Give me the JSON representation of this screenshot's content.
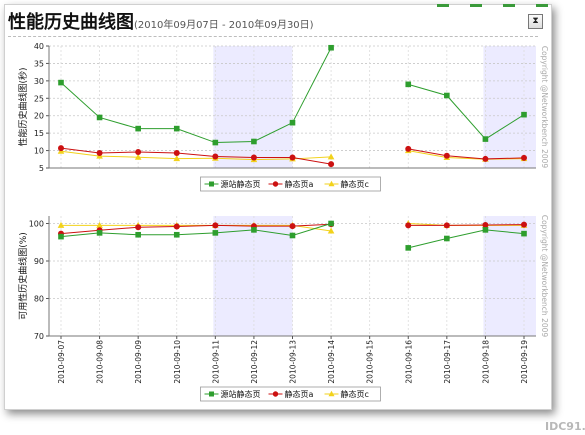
{
  "page": {
    "title": "性能历史曲线图",
    "subtitle": "(2010年09月07日 - 2010年09月30日)",
    "watermark": "IDC91."
  },
  "icons": {
    "export": "export-icon"
  },
  "chart_data": [
    {
      "type": "line",
      "ylabel": "性能历史曲线图(秒)",
      "ylim": [
        5,
        40
      ],
      "yticks": [
        5,
        10,
        15,
        20,
        25,
        30,
        35,
        40
      ],
      "grid": true,
      "legend_position": "bottom",
      "copyright": "Copyright @Networkbench 2009",
      "categories": [
        "2010-09-07",
        "2010-09-08",
        "2010-09-09",
        "2010-09-10",
        "2010-09-11",
        "2010-09-12",
        "2010-09-13",
        "2010-09-14",
        "2010-09-15",
        "2010-09-16",
        "2010-09-17",
        "2010-09-18",
        "2010-09-19"
      ],
      "shaded_ranges": [
        [
          "2010-09-11",
          "2010-09-13"
        ],
        [
          "2010-09-18",
          "2010-09-19"
        ]
      ],
      "series": [
        {
          "name": "源站静态页",
          "color": "#2e9e2e",
          "marker": "square",
          "values": [
            29.5,
            19.5,
            16.3,
            16.3,
            12.3,
            12.6,
            18,
            39.5,
            null,
            29,
            25.8,
            13.3,
            20.3
          ]
        },
        {
          "name": "静态页a",
          "color": "#cc1111",
          "marker": "circle",
          "values": [
            10.7,
            9.3,
            9.6,
            9.3,
            8.3,
            8,
            8,
            6.1,
            null,
            10.5,
            8.5,
            7.6,
            7.9
          ]
        },
        {
          "name": "静态页c",
          "color": "#f2d21b",
          "marker": "triangle",
          "values": [
            9.8,
            8.4,
            8.1,
            7.7,
            7.8,
            7.4,
            7.6,
            8.2,
            null,
            10,
            8,
            7.5,
            7.7
          ]
        }
      ]
    },
    {
      "type": "line",
      "ylabel": "可用性历史曲线图(%)",
      "ylim": [
        70,
        102
      ],
      "yticks": [
        70,
        80,
        90,
        100
      ],
      "grid": true,
      "legend_position": "bottom",
      "copyright": "Copyright @Networkbench 2009",
      "categories": [
        "2010-09-07",
        "2010-09-08",
        "2010-09-09",
        "2010-09-10",
        "2010-09-11",
        "2010-09-12",
        "2010-09-13",
        "2010-09-14",
        "2010-09-15",
        "2010-09-16",
        "2010-09-17",
        "2010-09-18",
        "2010-09-19"
      ],
      "shaded_ranges": [
        [
          "2010-09-11",
          "2010-09-13"
        ],
        [
          "2010-09-18",
          "2010-09-19"
        ]
      ],
      "series": [
        {
          "name": "源站静态页",
          "color": "#2e9e2e",
          "marker": "square",
          "values": [
            96.5,
            97.5,
            97,
            97,
            97.5,
            98.3,
            96.8,
            100,
            null,
            93.5,
            96,
            98.3,
            97.3
          ]
        },
        {
          "name": "静态页a",
          "color": "#cc1111",
          "marker": "circle",
          "values": [
            97.3,
            98.2,
            99,
            99.2,
            99.5,
            99.3,
            99.3,
            99.8,
            null,
            99.5,
            99.5,
            99.6,
            99.7
          ]
        },
        {
          "name": "静态页c",
          "color": "#f2d21b",
          "marker": "triangle",
          "values": [
            99.5,
            99.5,
            99.5,
            99.5,
            99.5,
            99.5,
            99.5,
            98,
            null,
            100,
            99.5,
            99.5,
            99.5
          ]
        }
      ]
    }
  ]
}
